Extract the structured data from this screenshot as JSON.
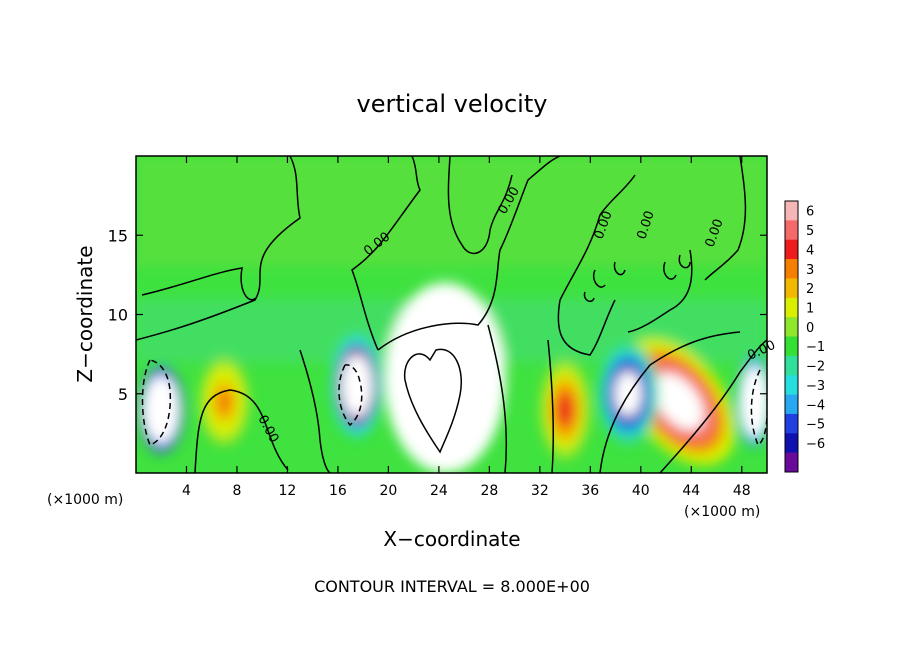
{
  "chart_data": {
    "type": "heatmap",
    "title": "vertical velocity",
    "xlabel": "X−coordinate",
    "ylabel": "Z−coordinate",
    "x_unit_note": "(×1000 m)",
    "z_unit_note": "(×1000 m)",
    "xlim": [
      0,
      50
    ],
    "ylim": [
      0,
      20
    ],
    "x_ticks": [
      "4",
      "8",
      "12",
      "16",
      "20",
      "24",
      "28",
      "32",
      "36",
      "40",
      "44",
      "48"
    ],
    "y_ticks": [
      "5",
      "10",
      "15"
    ],
    "x_tick_values": [
      4,
      8,
      12,
      16,
      20,
      24,
      28,
      32,
      36,
      40,
      44,
      48
    ],
    "y_tick_values": [
      5,
      10,
      15
    ],
    "colorbar": {
      "labels": [
        "6",
        "5",
        "4",
        "3",
        "2",
        "1",
        "0",
        "−1",
        "−2",
        "−3",
        "−4",
        "−5",
        "−6"
      ],
      "range": [
        -6,
        6
      ],
      "colors": [
        "#f7b6b6",
        "#f46a6a",
        "#ee1c1c",
        "#f57f00",
        "#f3b800",
        "#d9ee00",
        "#8fe62a",
        "#35e035",
        "#30e09a",
        "#27dede",
        "#28a8f0",
        "#2040e0",
        "#1010b0",
        "#6a0a9a"
      ]
    },
    "contour_interval_text": "CONTOUR INTERVAL = 8.000E+00",
    "contour_labels": [
      "0.00",
      "0.00",
      "0.00",
      "0.00",
      "0.00",
      "0.00",
      "0.00"
    ],
    "features": [
      {
        "kind": "updraft",
        "x": 24.5,
        "z": 6.0,
        "peak": 32
      },
      {
        "kind": "updraft",
        "x": 43.0,
        "z": 4.5,
        "peak": 6
      },
      {
        "kind": "updraft",
        "x": 34.0,
        "z": 4.0,
        "peak": 3
      },
      {
        "kind": "updraft",
        "x": 7.0,
        "z": 4.5,
        "peak": 2
      },
      {
        "kind": "downdraft",
        "x": 17.5,
        "z": 5.5,
        "peak": -10
      },
      {
        "kind": "downdraft",
        "x": 2.0,
        "z": 4.0,
        "peak": -16
      },
      {
        "kind": "downdraft",
        "x": 39.0,
        "z": 5.0,
        "peak": -6
      },
      {
        "kind": "downdraft",
        "x": 49.0,
        "z": 4.5,
        "peak": -12
      }
    ]
  }
}
